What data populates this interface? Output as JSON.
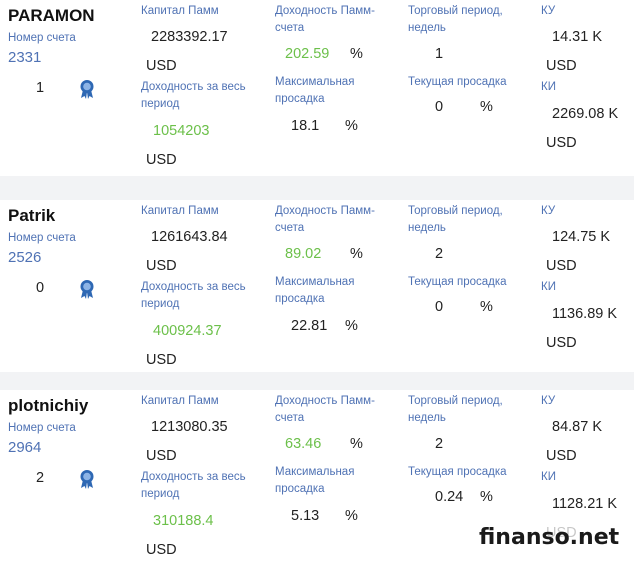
{
  "labels": {
    "account": "Номер счета",
    "capital": "Капитал Памм",
    "total_return": "Доходность за весь период",
    "pamm_return": "Доходность Памм-счета",
    "max_drawdown": "Максимальная просадка",
    "trade_period": "Торговый период, недель",
    "current_drawdown": "Текущая просадка",
    "ku": "КУ",
    "ki": "КИ",
    "usd": "USD",
    "percent": "%"
  },
  "accounts": [
    {
      "name": "PARAMON",
      "account_number": "2331",
      "rank": "1",
      "capital": "2283392.17",
      "total_return": "1054203",
      "pamm_return": "202.59",
      "max_drawdown": "18.1",
      "trade_period": "1",
      "current_drawdown": "0",
      "ku": "14.31 K",
      "ki": "2269.08 K"
    },
    {
      "name": "Patrik",
      "account_number": "2526",
      "rank": "0",
      "capital": "1261643.84",
      "total_return": "400924.37",
      "pamm_return": "89.02",
      "max_drawdown": "22.81",
      "trade_period": "2",
      "current_drawdown": "0",
      "ku": "124.75 K",
      "ki": "1136.89 K"
    },
    {
      "name": "plotnichiy",
      "account_number": "2964",
      "rank": "2",
      "capital": "1213080.35",
      "total_return": "310188.4",
      "pamm_return": "63.46",
      "max_drawdown": "5.13",
      "trade_period": "2",
      "current_drawdown": "0.24",
      "ku": "84.87 K",
      "ki": "1128.21 K"
    }
  ],
  "colors": {
    "label_blue": "#4f72b4",
    "return_green": "#6cc04a",
    "medal_blue": "#2e68b4"
  },
  "watermark": "finanso.net"
}
